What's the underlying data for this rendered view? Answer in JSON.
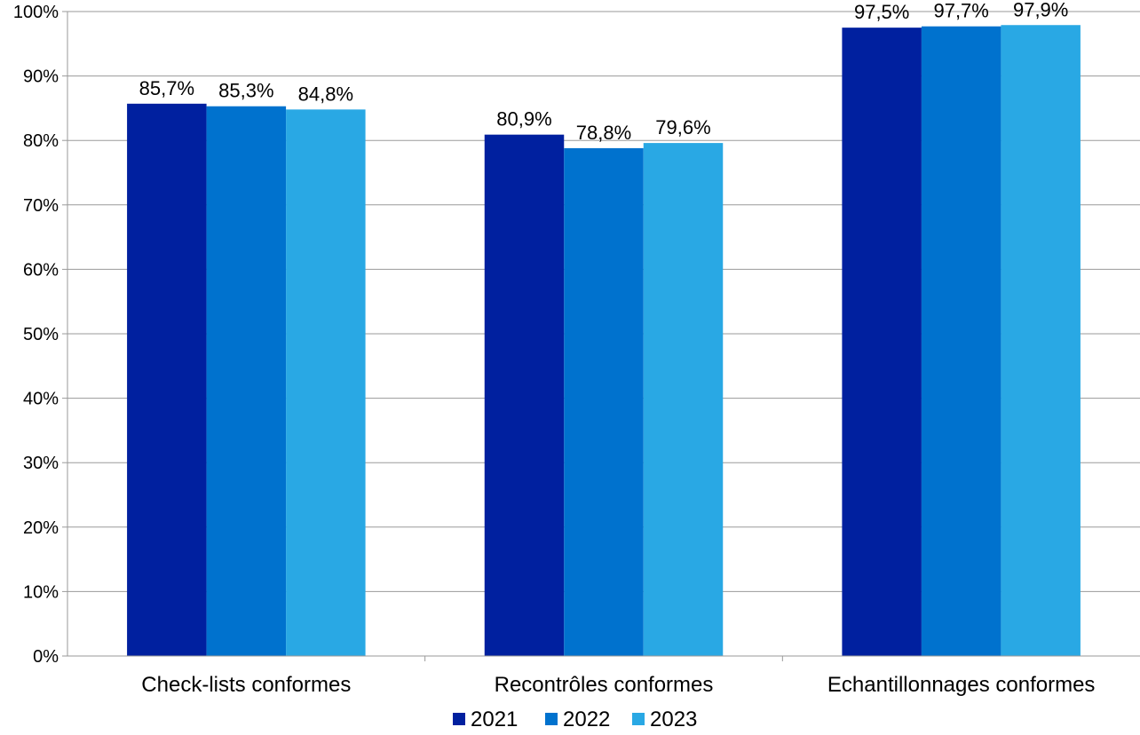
{
  "chart_data": {
    "type": "bar",
    "categories": [
      "Check-lists conformes",
      "Recontrôles conformes",
      "Echantillonnages conformes"
    ],
    "series": [
      {
        "name": "2021",
        "color": "#00209f",
        "values": [
          85.7,
          80.9,
          97.5
        ],
        "labels": [
          "85,7%",
          "80,9%",
          "97,5%"
        ]
      },
      {
        "name": "2022",
        "color": "#0072ce",
        "values": [
          85.3,
          78.8,
          97.7
        ],
        "labels": [
          "85,3%",
          "78,8%",
          "97,7%"
        ]
      },
      {
        "name": "2023",
        "color": "#29a8e4",
        "values": [
          84.8,
          79.6,
          97.9
        ],
        "labels": [
          "84,8%",
          "79,6%",
          "97,9%"
        ]
      }
    ],
    "ylim": [
      0,
      100
    ],
    "yticks": [
      0,
      10,
      20,
      30,
      40,
      50,
      60,
      70,
      80,
      90,
      100
    ],
    "ytick_labels": [
      "0%",
      "10%",
      "20%",
      "30%",
      "40%",
      "50%",
      "60%",
      "70%",
      "80%",
      "90%",
      "100%"
    ],
    "grid": true,
    "legend_position": "bottom",
    "title": "",
    "xlabel": "",
    "ylabel": ""
  }
}
